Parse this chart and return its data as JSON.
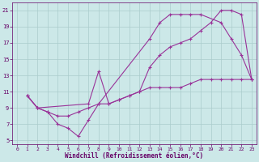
{
  "bg_color": "#cce8e8",
  "line_color": "#993399",
  "grid_color": "#aacccc",
  "xlabel": "Windchill (Refroidissement éolien,°C)",
  "xlabel_color": "#660066",
  "tick_color": "#660066",
  "xlim": [
    -0.5,
    23.5
  ],
  "ylim": [
    4.5,
    22.0
  ],
  "yticks": [
    5,
    7,
    9,
    11,
    13,
    15,
    17,
    19,
    21
  ],
  "xticks": [
    0,
    1,
    2,
    3,
    4,
    5,
    6,
    7,
    8,
    9,
    10,
    11,
    12,
    13,
    14,
    15,
    16,
    17,
    18,
    19,
    20,
    21,
    22,
    23
  ],
  "line1_x": [
    1,
    2,
    3,
    4,
    5,
    6,
    7,
    8,
    13,
    14,
    15,
    16,
    17,
    18,
    20,
    21,
    22,
    23
  ],
  "line1_y": [
    10.5,
    9.0,
    8.5,
    7.0,
    6.5,
    5.5,
    7.5,
    9.5,
    17.5,
    19.5,
    20.5,
    20.5,
    20.5,
    20.5,
    19.5,
    17.5,
    15.5,
    12.5
  ],
  "line2_x": [
    1,
    2,
    7,
    8,
    9,
    10,
    11,
    12,
    13,
    14,
    15,
    16,
    17,
    18,
    19,
    20,
    21,
    22,
    23
  ],
  "line2_y": [
    10.5,
    9.0,
    9.5,
    13.5,
    9.5,
    10.0,
    10.5,
    11.0,
    14.0,
    15.5,
    16.5,
    17.0,
    17.5,
    18.5,
    19.5,
    21.0,
    21.0,
    20.5,
    12.5
  ],
  "line3_x": [
    1,
    2,
    3,
    4,
    5,
    6,
    7,
    8,
    9,
    10,
    11,
    12,
    13,
    14,
    15,
    16,
    17,
    18,
    19,
    20,
    21,
    22,
    23
  ],
  "line3_y": [
    10.5,
    9.0,
    8.5,
    8.0,
    8.0,
    8.5,
    9.0,
    9.5,
    9.5,
    10.0,
    10.5,
    11.0,
    11.5,
    11.5,
    11.5,
    11.5,
    12.0,
    12.5,
    12.5,
    12.5,
    12.5,
    12.5,
    12.5
  ]
}
